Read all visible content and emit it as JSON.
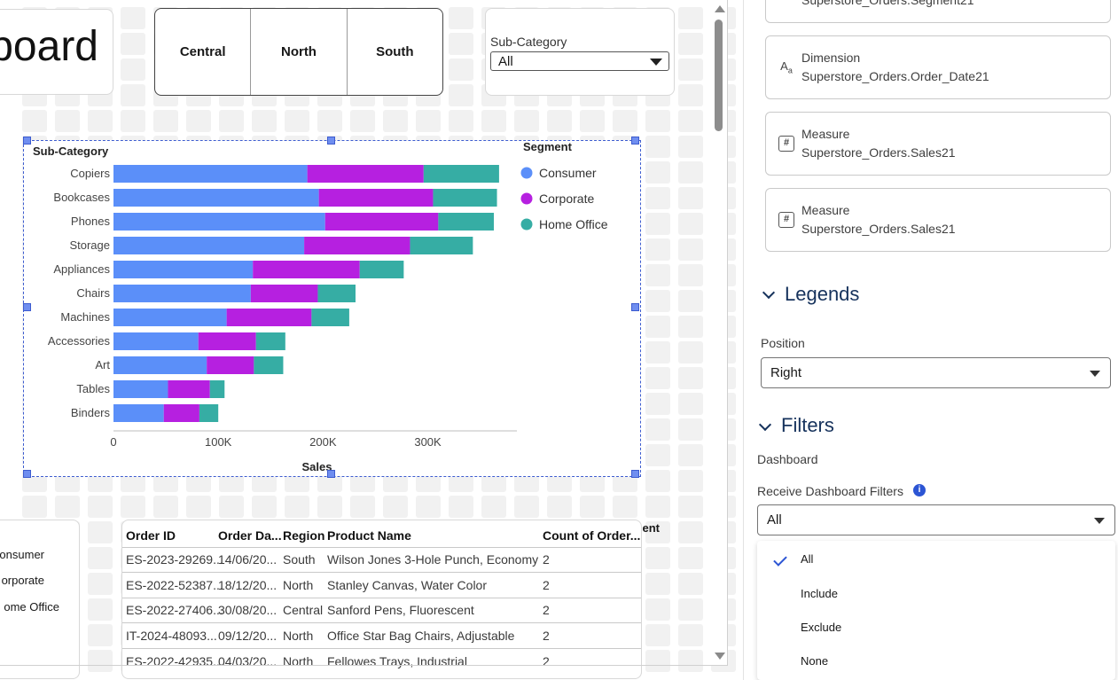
{
  "dashboard": {
    "title_fragment": "board",
    "region_filter": {
      "buttons": [
        "Central",
        "North",
        "South"
      ]
    },
    "subcategory_filter": {
      "label": "Sub-Category",
      "value": "All"
    }
  },
  "chart_data": {
    "type": "bar",
    "orientation": "horizontal",
    "stacked": true,
    "categories_title": "Sub-Category",
    "categories": [
      "Copiers",
      "Bookcases",
      "Phones",
      "Storage",
      "Appliances",
      "Chairs",
      "Machines",
      "Accessories",
      "Art",
      "Tables",
      "Binders"
    ],
    "series": [
      {
        "name": "Consumer",
        "color": "#5b8ff9",
        "values": [
          185000,
          196000,
          202000,
          182000,
          133000,
          131000,
          108000,
          81000,
          89000,
          52000,
          48000
        ]
      },
      {
        "name": "Corporate",
        "color": "#b620e0",
        "values": [
          111000,
          109000,
          108000,
          101000,
          102000,
          64000,
          81000,
          55000,
          45000,
          40000,
          34000
        ]
      },
      {
        "name": "Home Office",
        "color": "#36ada4",
        "values": [
          72000,
          61000,
          53000,
          60000,
          42000,
          36000,
          36000,
          28000,
          28000,
          14000,
          18000
        ]
      }
    ],
    "xlabel": "Sales",
    "xticks": [
      "0",
      "100K",
      "200K",
      "300K"
    ],
    "xlim": [
      0,
      385000
    ],
    "legend": {
      "title": "Segment",
      "position": "right"
    },
    "grid": false
  },
  "segment_legend": {
    "title": "nent",
    "items": [
      "onsumer",
      "orporate",
      "ome Office"
    ]
  },
  "orders_table": {
    "columns": [
      "Order ID",
      "Order Da...",
      "Region",
      "Product Name",
      "Count of Order..."
    ],
    "rows": [
      [
        "ES-2023-29269...",
        "14/06/20...",
        "South",
        "Wilson Jones 3-Hole Punch, Economy",
        "2"
      ],
      [
        "ES-2022-52387...",
        "18/12/20...",
        "North",
        "Stanley Canvas, Water Color",
        "2"
      ],
      [
        "ES-2022-27406...",
        "30/08/20...",
        "Central",
        "Sanford Pens, Fluorescent",
        "2"
      ],
      [
        "IT-2024-48093...",
        "09/12/20...",
        "North",
        "Office Star Bag Chairs, Adjustable",
        "2"
      ],
      [
        "ES-2022-42935...",
        "04/03/20...",
        "North",
        "Fellowes Trays, Industrial",
        "2"
      ]
    ]
  },
  "panel": {
    "fields": [
      {
        "kind": "",
        "name": "Superstore_Orders.Segment21",
        "icon": "text-icon"
      },
      {
        "kind": "Dimension",
        "name": "Superstore_Orders.Order_Date21",
        "icon": "text-icon"
      },
      {
        "kind": "Measure",
        "name": "Superstore_Orders.Sales21",
        "icon": "hash-icon"
      },
      {
        "kind": "Measure",
        "name": "Superstore_Orders.Sales21",
        "icon": "hash-icon"
      }
    ],
    "legends": {
      "heading": "Legends",
      "position_label": "Position",
      "position_value": "Right"
    },
    "filters": {
      "heading": "Filters",
      "dashboard_label": "Dashboard",
      "receive_label": "Receive Dashboard Filters",
      "receive_value": "All",
      "options": [
        "All",
        "Include",
        "Exclude",
        "None"
      ],
      "selected": "All"
    }
  }
}
